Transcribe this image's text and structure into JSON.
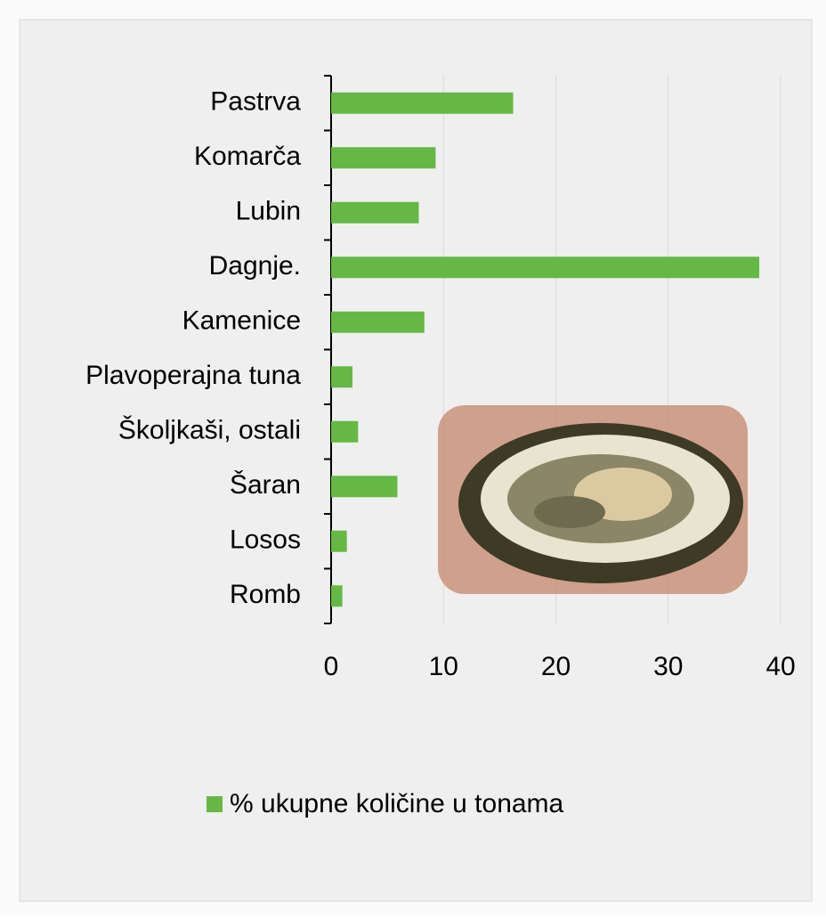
{
  "chart_data": {
    "type": "bar",
    "orientation": "horizontal",
    "categories": [
      "Pastrva",
      "Komarča",
      "Lubin",
      "Dagnje.",
      "Kamenice",
      "Plavoperajna tuna",
      "Školjkaši, ostali",
      "Šaran",
      "Losos",
      "Romb"
    ],
    "series": [
      {
        "name": "% ukupne količine u tonama",
        "color": "#66b845",
        "values": [
          16.2,
          9.3,
          7.8,
          38.1,
          8.3,
          1.9,
          2.4,
          5.9,
          1.4,
          1.0
        ]
      }
    ],
    "xlim": [
      0,
      40
    ],
    "xticks": [
      0,
      10,
      20,
      30,
      40
    ],
    "grid": true,
    "legend": "bottom"
  }
}
